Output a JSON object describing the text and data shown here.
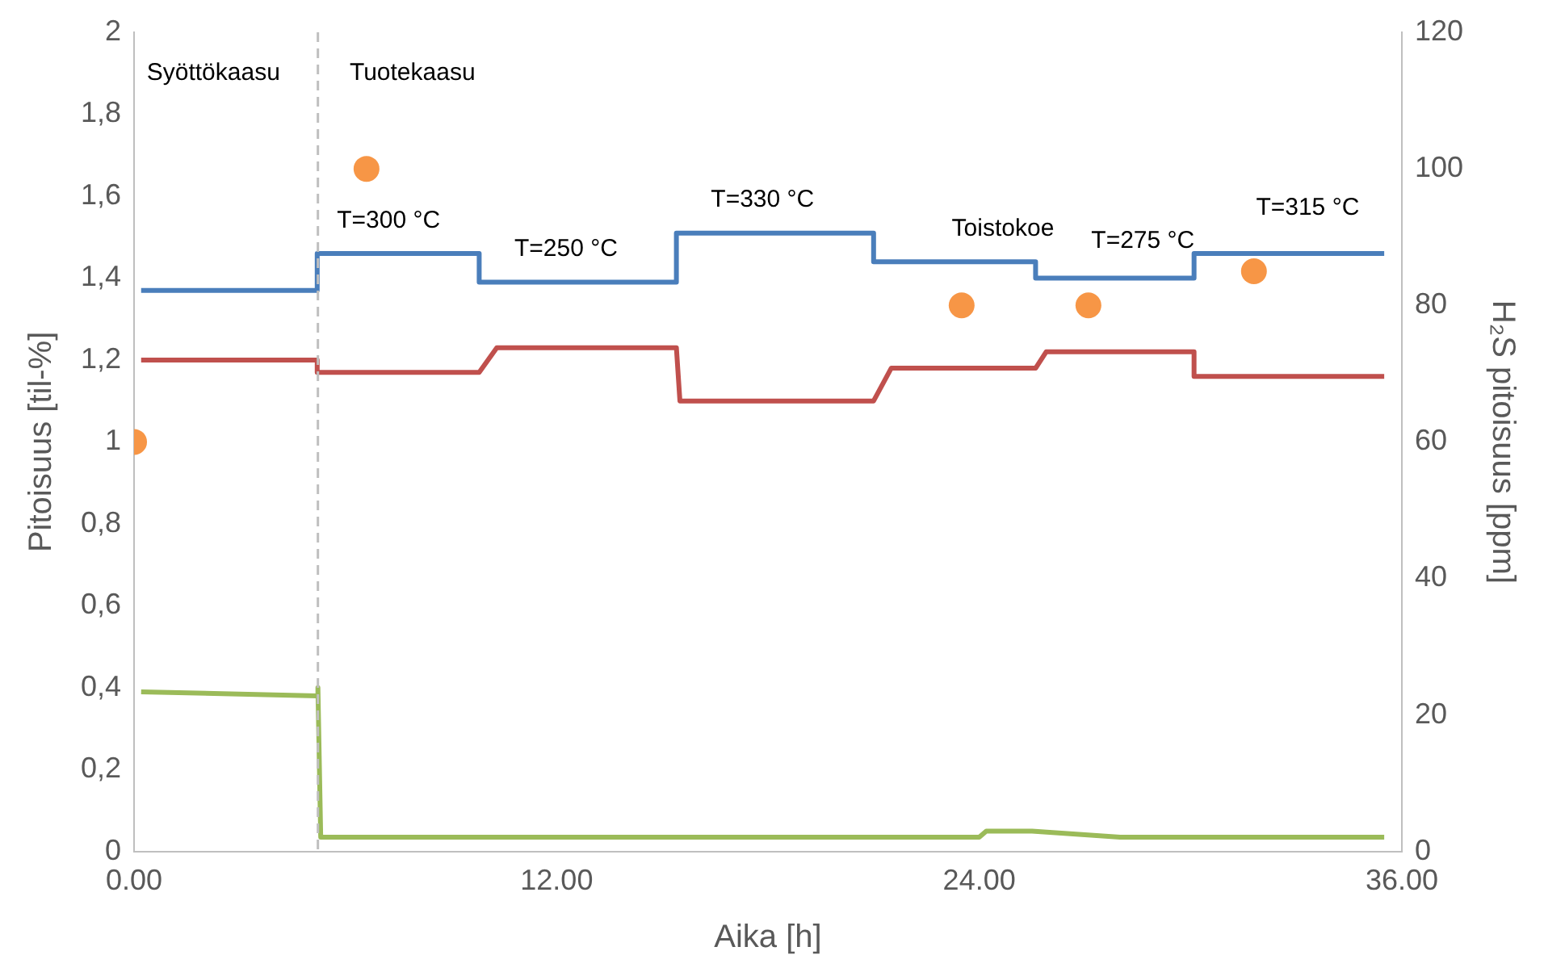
{
  "chart_data": {
    "type": "line",
    "xlabel": "Aika [h]",
    "ylabel": "Pitoisuus [til-%]",
    "y2label": "H₂S pitoisuus [ppm]",
    "xlim": [
      0,
      36
    ],
    "xticks": [
      {
        "value": 0,
        "label": "0.00"
      },
      {
        "value": 12,
        "label": "12.00"
      },
      {
        "value": 24,
        "label": "24.00"
      },
      {
        "value": 36,
        "label": "36.00"
      }
    ],
    "ylim": [
      0,
      2
    ],
    "yticks": [
      0,
      {
        "value": 0.2,
        "label": "0,2"
      },
      {
        "value": 0.4,
        "label": "0,4"
      },
      {
        "value": 0.6,
        "label": "0,6"
      },
      {
        "value": 0.8,
        "label": "0,8"
      },
      1,
      {
        "value": 1.2,
        "label": "1,2"
      },
      {
        "value": 1.4,
        "label": "1,4"
      },
      {
        "value": 1.6,
        "label": "1,6"
      },
      {
        "value": 1.8,
        "label": "1,8"
      },
      2
    ],
    "y2lim": [
      0,
      120
    ],
    "y2ticks": [
      0,
      20,
      40,
      60,
      80,
      100,
      120
    ],
    "legend": false,
    "marker": "none",
    "line_style": "solid",
    "series": [
      {
        "color": "#4a7ebb",
        "x": [
          0.2,
          5.2,
          5.2,
          9.8,
          9.8,
          15.4,
          15.4,
          21.0,
          21.0,
          25.6,
          25.6,
          30.1,
          30.1,
          35.5
        ],
        "values": [
          1.37,
          1.37,
          1.46,
          1.46,
          1.39,
          1.39,
          1.51,
          1.51,
          1.44,
          1.44,
          1.4,
          1.4,
          1.46,
          1.46
        ]
      },
      {
        "color": "#c0504d",
        "x": [
          0.2,
          5.2,
          5.2,
          9.8,
          10.3,
          15.4,
          15.5,
          21.0,
          21.5,
          25.6,
          25.9,
          30.1,
          30.1,
          35.5
        ],
        "values": [
          1.2,
          1.2,
          1.17,
          1.17,
          1.23,
          1.23,
          1.1,
          1.1,
          1.18,
          1.18,
          1.22,
          1.22,
          1.16,
          1.16
        ]
      },
      {
        "color": "#9bbb59",
        "x": [
          0.2,
          5.2,
          5.22,
          5.3,
          24.0,
          24.2,
          25.5,
          28.0,
          35.5
        ],
        "values": [
          0.39,
          0.38,
          0.4,
          0.035,
          0.035,
          0.05,
          0.05,
          0.035,
          0.035
        ]
      },
      {
        "type": "scatter",
        "axis": "y2",
        "color": "#f79646",
        "marker": "circle",
        "x": [
          0,
          6.6,
          23.5,
          27.1,
          31.8
        ],
        "values": [
          60,
          100,
          80,
          80,
          85
        ]
      }
    ],
    "ref_lines": [
      {
        "axis": "x",
        "value": 5.22,
        "color": "#bfbfbf",
        "line_style": "dashed"
      }
    ],
    "annotations": [
      "Syöttökaasu",
      "Tuotekaasu",
      "T=300 °C",
      "T=250 °C",
      "T=330 °C",
      "Toistokoe",
      "T=275 °C",
      "T=315 °C"
    ]
  }
}
